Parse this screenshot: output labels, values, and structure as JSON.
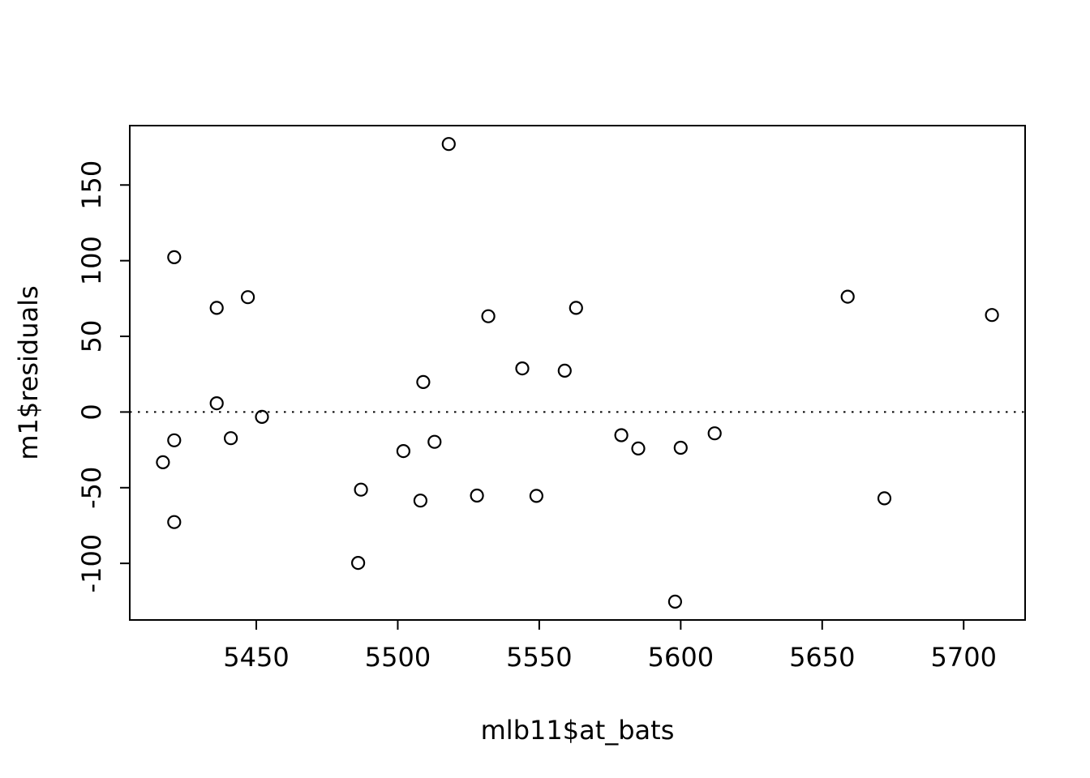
{
  "chart_data": {
    "type": "scatter",
    "title": "",
    "xlabel": "mlb11$at_bats",
    "ylabel": "m1$residuals",
    "x": [
      5659,
      5710,
      5563,
      5672,
      5532,
      5600,
      5518,
      5447,
      5544,
      5598,
      5585,
      5513,
      5421,
      5559,
      5487,
      5508,
      5421,
      5436,
      5549,
      5579,
      5502,
      5509,
      5612,
      5441,
      5452,
      5486,
      5436,
      5528,
      5421,
      5417
    ],
    "y": [
      76.2,
      64.1,
      68.8,
      -57.0,
      63.3,
      -23.6,
      177.1,
      75.9,
      28.8,
      -125.3,
      -24.1,
      -19.7,
      102.3,
      27.3,
      -51.3,
      -58.5,
      -18.7,
      5.8,
      -55.4,
      -15.3,
      -25.8,
      19.8,
      -14.1,
      -17.3,
      -3.2,
      -99.7,
      68.8,
      -55.2,
      -72.7,
      -33.2
    ],
    "xlim": [
      5405.28,
      5721.72
    ],
    "ylim": [
      -137.4,
      189.24
    ],
    "x_ticks": [
      5450,
      5500,
      5550,
      5600,
      5650,
      5700
    ],
    "y_ticks": [
      -100,
      -50,
      0,
      50,
      100,
      150
    ],
    "reference_line": {
      "y": 0,
      "style": "dotted"
    },
    "marker": "open-circle",
    "grid": false,
    "legend": "none",
    "point_color": "#000000",
    "axis_color": "#000000",
    "background": "#ffffff"
  }
}
